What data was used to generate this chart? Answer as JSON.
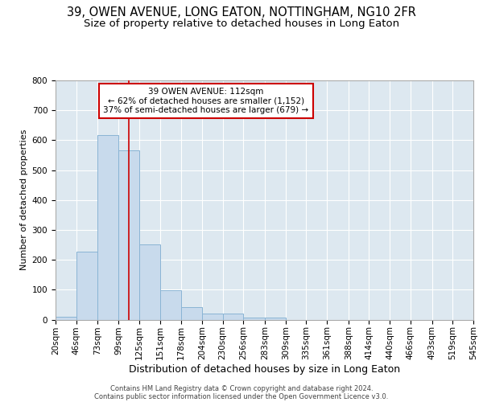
{
  "title1": "39, OWEN AVENUE, LONG EATON, NOTTINGHAM, NG10 2FR",
  "title2": "Size of property relative to detached houses in Long Eaton",
  "xlabel": "Distribution of detached houses by size in Long Eaton",
  "ylabel": "Number of detached properties",
  "bin_edges": [
    20,
    46,
    73,
    99,
    125,
    151,
    178,
    204,
    230,
    256,
    283,
    309,
    335,
    361,
    388,
    414,
    440,
    466,
    493,
    519,
    545
  ],
  "bar_heights": [
    10,
    228,
    617,
    565,
    252,
    97,
    43,
    20,
    20,
    7,
    7,
    0,
    0,
    0,
    0,
    0,
    0,
    0,
    0,
    0
  ],
  "bar_color": "#c8daec",
  "bar_edge_color": "#8ab4d4",
  "property_sqm": 112,
  "vline_color": "#cc0000",
  "annotation_text1": "39 OWEN AVENUE: 112sqm",
  "annotation_text2": "← 62% of detached houses are smaller (1,152)",
  "annotation_text3": "37% of semi-detached houses are larger (679) →",
  "annotation_box_facecolor": "#ffffff",
  "annotation_box_edgecolor": "#cc0000",
  "ylim": [
    0,
    800
  ],
  "yticks": [
    0,
    100,
    200,
    300,
    400,
    500,
    600,
    700,
    800
  ],
  "grid_color": "#ffffff",
  "axes_bg_color": "#dde8f0",
  "fig_bg_color": "#ffffff",
  "footer1": "Contains HM Land Registry data © Crown copyright and database right 2024.",
  "footer2": "Contains public sector information licensed under the Open Government Licence v3.0.",
  "title1_fontsize": 10.5,
  "title2_fontsize": 9.5,
  "xlabel_fontsize": 9,
  "ylabel_fontsize": 8,
  "tick_labelsize": 7.5,
  "annotation_fontsize": 7.5,
  "footer_fontsize": 6
}
